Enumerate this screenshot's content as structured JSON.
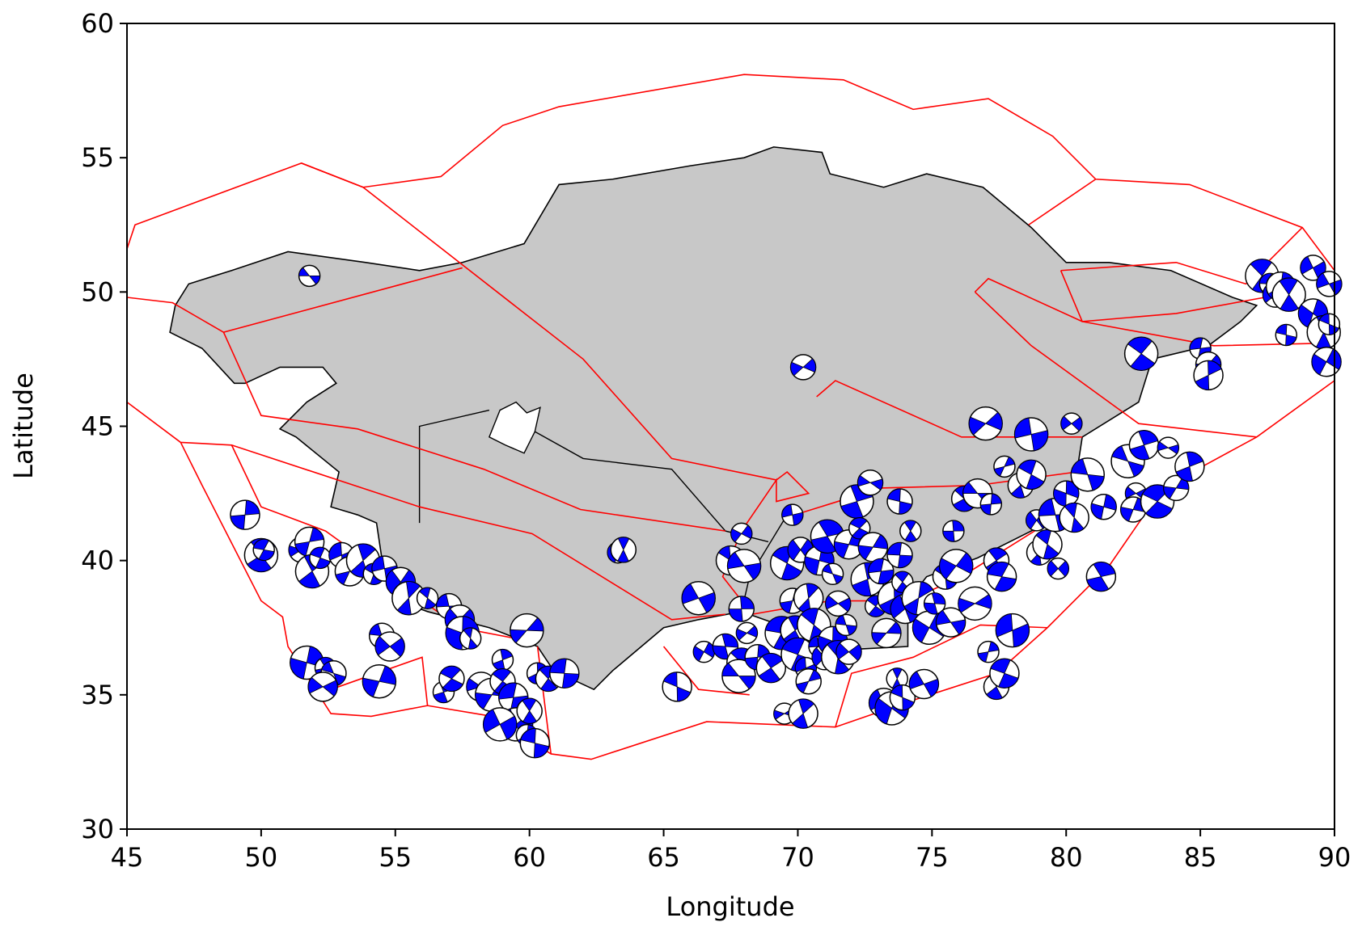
{
  "chart_data": {
    "type": "scatter",
    "xlabel": "Longitude",
    "ylabel": "Latitude",
    "color": "#0000ff",
    "xlim": [
      45,
      90
    ],
    "ylim": [
      30,
      60
    ],
    "xticks": [
      45,
      50,
      55,
      60,
      65,
      70,
      75,
      80,
      85,
      90
    ],
    "yticks": [
      30,
      35,
      40,
      45,
      50,
      55,
      60
    ],
    "x": [
      51.8,
      70.2,
      49.4,
      50.0,
      50.1,
      51.5,
      51.8,
      51.9,
      52.2,
      53.0,
      53.3,
      53.8,
      54.2,
      54.6,
      55.2,
      55.5,
      56.2,
      57.0,
      57.4,
      57.5,
      57.8,
      54.5,
      54.8,
      51.7,
      52.4,
      52.7,
      52.3,
      54.4,
      56.8,
      57.1,
      58.2,
      58.6,
      59.0,
      59.0,
      59.4,
      59.9,
      60.3,
      60.7,
      61.3,
      59.5,
      59.9,
      60.0,
      60.2,
      58.9,
      63.3,
      63.5,
      65.5,
      66.3,
      66.5,
      67.3,
      67.5,
      68.0,
      67.9,
      67.9,
      67.9,
      67.8,
      68.1,
      68.5,
      69.0,
      69.4,
      69.5,
      69.8,
      69.9,
      70.0,
      70.3,
      70.4,
      70.2,
      69.6,
      69.8,
      70.1,
      70.4,
      70.6,
      70.8,
      71.0,
      71.3,
      71.5,
      71.8,
      71.9,
      70.8,
      71.1,
      71.3,
      71.5,
      71.9,
      72.2,
      72.3,
      72.7,
      72.8,
      72.6,
      72.9,
      73.1,
      73.3,
      73.6,
      73.9,
      73.8,
      74.0,
      74.5,
      74.2,
      73.8,
      73.2,
      73.5,
      73.7,
      73.9,
      74.7,
      74.9,
      75.1,
      75.5,
      75.7,
      75.9,
      75.8,
      76.2,
      76.7,
      77.0,
      77.2,
      77.4,
      77.6,
      76.6,
      77.1,
      77.4,
      77.7,
      78.0,
      77.7,
      78.3,
      78.7,
      78.7,
      78.9,
      79.0,
      79.3,
      79.6,
      79.7,
      80.0,
      80.3,
      80.8,
      80.2,
      81.4,
      81.3,
      82.3,
      82.6,
      82.5,
      82.9,
      83.4,
      83.8,
      84.1,
      84.6,
      82.8,
      85.0,
      85.3,
      85.3,
      87.3,
      87.6,
      87.8,
      88.0,
      88.3,
      88.2,
      89.2,
      89.2,
      89.6,
      89.8,
      89.8,
      89.7
    ],
    "y": [
      50.6,
      47.2,
      41.7,
      40.2,
      40.4,
      40.4,
      40.7,
      39.6,
      40.1,
      40.2,
      39.6,
      40.0,
      39.5,
      39.7,
      39.2,
      38.6,
      38.6,
      38.3,
      37.8,
      37.3,
      37.1,
      37.2,
      36.8,
      36.2,
      36.0,
      35.8,
      35.3,
      35.5,
      35.1,
      35.6,
      35.3,
      35.0,
      36.3,
      35.5,
      34.9,
      37.4,
      35.8,
      35.6,
      35.8,
      33.9,
      33.5,
      34.4,
      33.2,
      33.9,
      40.3,
      40.4,
      35.3,
      38.6,
      36.6,
      36.8,
      40.0,
      39.8,
      41.0,
      38.2,
      36.2,
      35.7,
      37.3,
      36.4,
      36.0,
      37.3,
      34.3,
      38.5,
      37.4,
      36.5,
      36.0,
      35.5,
      34.3,
      39.9,
      41.7,
      40.4,
      38.6,
      37.6,
      36.8,
      36.4,
      37.0,
      36.4,
      37.6,
      36.6,
      40.0,
      40.9,
      39.5,
      38.4,
      40.6,
      42.2,
      41.2,
      42.9,
      40.5,
      39.3,
      38.3,
      39.6,
      37.3,
      38.6,
      39.2,
      40.2,
      38.2,
      38.6,
      41.1,
      42.2,
      34.7,
      34.5,
      35.6,
      34.9,
      35.4,
      37.5,
      38.4,
      39.4,
      37.7,
      39.8,
      41.1,
      42.3,
      42.5,
      45.1,
      42.1,
      40.0,
      39.4,
      38.4,
      36.6,
      35.3,
      35.8,
      37.4,
      43.5,
      42.8,
      43.2,
      44.7,
      41.5,
      40.3,
      40.6,
      41.7,
      39.7,
      42.5,
      41.6,
      43.2,
      45.1,
      42.0,
      39.4,
      43.7,
      42.5,
      41.9,
      44.3,
      42.2,
      44.2,
      42.7,
      43.5,
      47.7,
      47.9,
      47.3,
      46.9,
      50.6,
      50.3,
      49.9,
      50.2,
      49.9,
      48.4,
      50.9,
      49.2,
      48.5,
      48.8,
      50.3,
      47.4
    ]
  }
}
